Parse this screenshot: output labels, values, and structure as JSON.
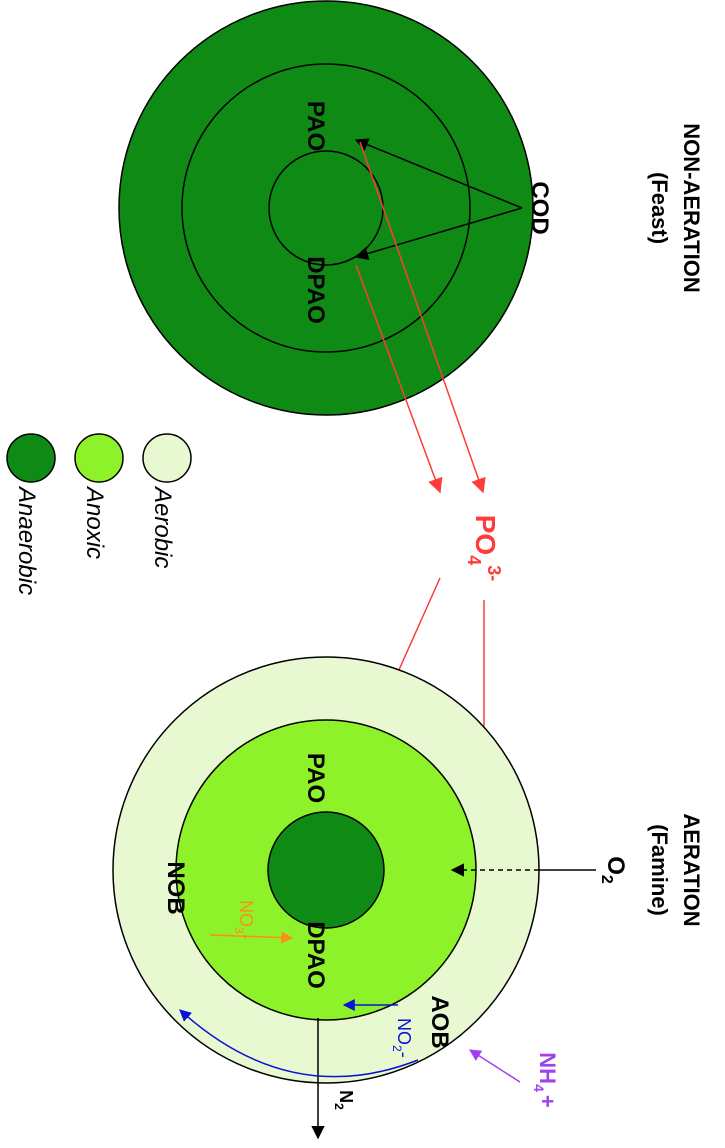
{
  "colors": {
    "anaerobic": "#0f8a14",
    "anoxic": "#8ef22a",
    "aerobic": "#e8f8d0",
    "red": "#ff3b3b",
    "blue": "#0a12d8",
    "orange": "#ff8c1a",
    "purple": "#a040f0",
    "black": "#000000"
  },
  "conditions": {
    "non_aeration_line1": "NON-AERATION",
    "non_aeration_line2": "(Feast)",
    "aeration_line1": "AERATION",
    "aeration_line2": "(Famine)"
  },
  "granule_feast": {
    "pao": "PAO",
    "dpao": "DPAO",
    "cod": "COD"
  },
  "phosphate": {
    "base": "PO",
    "sub": "4",
    "sup": "3-"
  },
  "granule_famine": {
    "pao": "PAO",
    "dpao": "DPAO",
    "aob": "AOB",
    "nob": "NOB",
    "o2_base": "O",
    "o2_sub": "2",
    "n2_base": "N",
    "n2_sub": "2",
    "nh4_base": "NH",
    "nh4_sub": "4",
    "nh4_sup": "+",
    "no2_base": "NO",
    "no2_sub": "2",
    "no2_sup": "-",
    "no3_base": "NO",
    "no3_sub": "3",
    "no3_sup": "-"
  },
  "legend": {
    "items": [
      {
        "label": "Aerobic",
        "color": "#e8f8d0"
      },
      {
        "label": "Anoxic",
        "color": "#8ef22a"
      },
      {
        "label": "Anaerobic",
        "color": "#0f8a14"
      }
    ]
  }
}
